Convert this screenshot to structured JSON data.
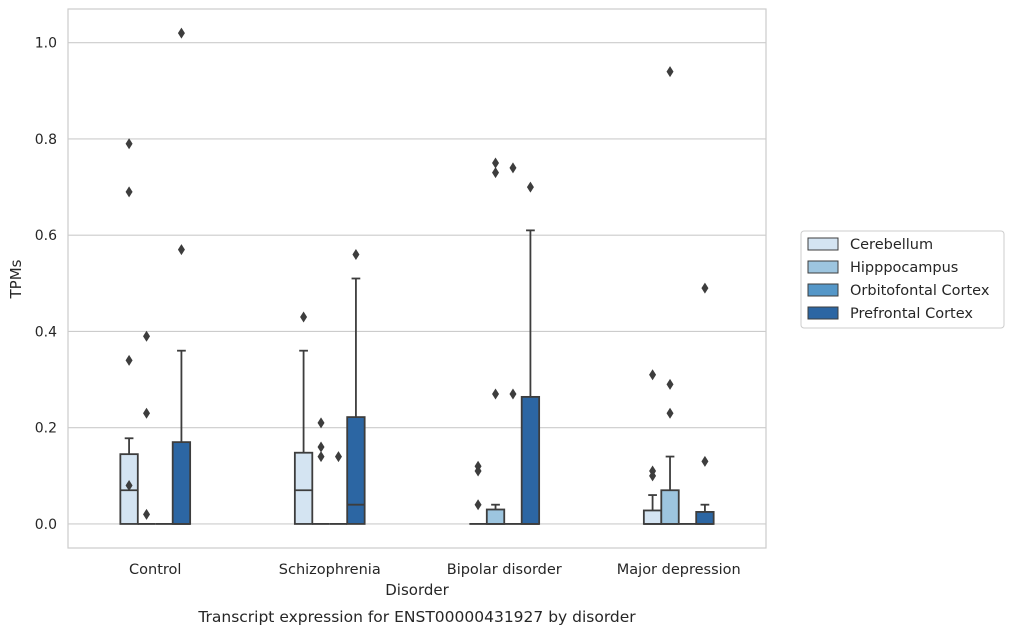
{
  "chart_data": {
    "type": "box",
    "caption": "Transcript expression for ENST00000431927 by disorder",
    "xlabel": "Disorder",
    "ylabel": "TPMs",
    "ylim": [
      -0.05,
      1.07
    ],
    "yticks": [
      0.0,
      0.2,
      0.4,
      0.6,
      0.8,
      1.0
    ],
    "ytick_labels": [
      "0.0",
      "0.2",
      "0.4",
      "0.6",
      "0.8",
      "1.0"
    ],
    "grid": "horizontal",
    "legend_position": "right",
    "categories": [
      "Control",
      "Schizophrenia",
      "Bipolar disorder",
      "Major depression"
    ],
    "series": [
      {
        "name": "Cerebellum",
        "color": "#d4e4f2",
        "boxes": [
          {
            "q1": 0.0,
            "median": 0.07,
            "q3": 0.145,
            "whisker_low": 0.0,
            "whisker_high": 0.178,
            "outliers": [
              0.69,
              0.79,
              0.34,
              0.08
            ]
          },
          {
            "q1": 0.0,
            "median": 0.07,
            "q3": 0.148,
            "whisker_low": 0.0,
            "whisker_high": 0.36,
            "outliers": [
              0.43
            ]
          },
          {
            "q1": 0.0,
            "median": 0.0,
            "q3": 0.0,
            "whisker_low": 0.0,
            "whisker_high": 0.0,
            "outliers": [
              0.12,
              0.11,
              0.04
            ]
          },
          {
            "q1": 0.0,
            "median": 0.0,
            "q3": 0.028,
            "whisker_low": 0.0,
            "whisker_high": 0.06,
            "outliers": [
              0.31,
              0.11,
              0.1
            ]
          }
        ]
      },
      {
        "name": "Hipppocampus",
        "color": "#9dc5df",
        "boxes": [
          {
            "q1": 0.0,
            "median": 0.0,
            "q3": 0.0,
            "whisker_low": 0.0,
            "whisker_high": 0.0,
            "outliers": [
              0.02,
              0.23,
              0.39
            ]
          },
          {
            "q1": 0.0,
            "median": 0.0,
            "q3": 0.0,
            "whisker_low": 0.0,
            "whisker_high": 0.0,
            "outliers": [
              0.21,
              0.16,
              0.14
            ]
          },
          {
            "q1": 0.0,
            "median": 0.0,
            "q3": 0.03,
            "whisker_low": 0.0,
            "whisker_high": 0.04,
            "outliers": [
              0.75,
              0.73,
              0.27
            ]
          },
          {
            "q1": 0.0,
            "median": 0.0,
            "q3": 0.07,
            "whisker_low": 0.0,
            "whisker_high": 0.14,
            "outliers": [
              0.94,
              0.29,
              0.23
            ]
          }
        ]
      },
      {
        "name": "Orbitofontal Cortex",
        "color": "#5597c8",
        "boxes": [
          {
            "q1": 0.0,
            "median": 0.0,
            "q3": 0.0,
            "whisker_low": 0.0,
            "whisker_high": 0.0,
            "outliers": []
          },
          {
            "q1": 0.0,
            "median": 0.0,
            "q3": 0.0,
            "whisker_low": 0.0,
            "whisker_high": 0.0,
            "outliers": [
              0.14
            ]
          },
          {
            "q1": 0.0,
            "median": 0.0,
            "q3": 0.0,
            "whisker_low": 0.0,
            "whisker_high": 0.0,
            "outliers": [
              0.74,
              0.27
            ]
          },
          {
            "q1": 0.0,
            "median": 0.0,
            "q3": 0.0,
            "whisker_low": 0.0,
            "whisker_high": 0.0,
            "outliers": []
          }
        ]
      },
      {
        "name": "Prefrontal Cortex",
        "color": "#2c66a3",
        "boxes": [
          {
            "q1": 0.0,
            "median": 0.0,
            "q3": 0.17,
            "whisker_low": 0.0,
            "whisker_high": 0.36,
            "outliers": [
              1.02,
              0.57
            ]
          },
          {
            "q1": 0.0,
            "median": 0.04,
            "q3": 0.222,
            "whisker_low": 0.0,
            "whisker_high": 0.51,
            "outliers": [
              0.56
            ]
          },
          {
            "q1": 0.0,
            "median": 0.0,
            "q3": 0.264,
            "whisker_low": 0.0,
            "whisker_high": 0.61,
            "outliers": [
              0.7
            ]
          },
          {
            "q1": 0.0,
            "median": 0.0,
            "q3": 0.025,
            "whisker_low": 0.0,
            "whisker_high": 0.04,
            "outliers": [
              0.49,
              0.13
            ]
          }
        ]
      }
    ]
  }
}
